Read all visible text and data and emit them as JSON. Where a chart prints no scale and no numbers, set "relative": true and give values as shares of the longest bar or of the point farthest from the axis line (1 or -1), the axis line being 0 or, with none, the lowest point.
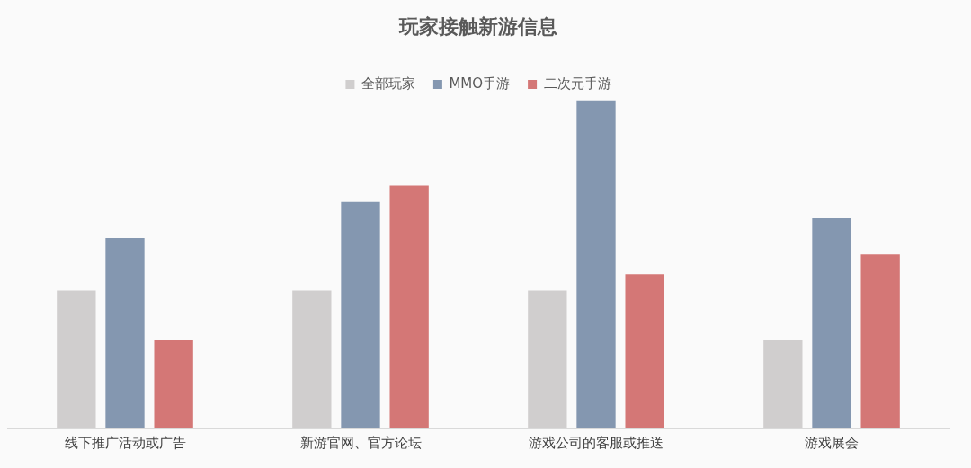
{
  "chart_data": {
    "type": "bar",
    "title": "玩家接触新游信息",
    "relative": true,
    "legend": "top",
    "grid": false,
    "categories": [
      "线下推广活动或广告",
      "新游官网、官方论坛",
      "游戏公司的客服或推送",
      "游戏展会"
    ],
    "series": [
      {
        "name": "全部玩家",
        "color": "#d0cece",
        "values": [
          0.42,
          0.42,
          0.42,
          0.27
        ]
      },
      {
        "name": "MMO手游",
        "color": "#8497b0",
        "values": [
          0.58,
          0.69,
          1,
          0.64
        ]
      },
      {
        "name": "二次元手游",
        "color": "#d47776",
        "values": [
          0.27,
          0.74,
          0.47,
          0.53
        ]
      }
    ]
  }
}
